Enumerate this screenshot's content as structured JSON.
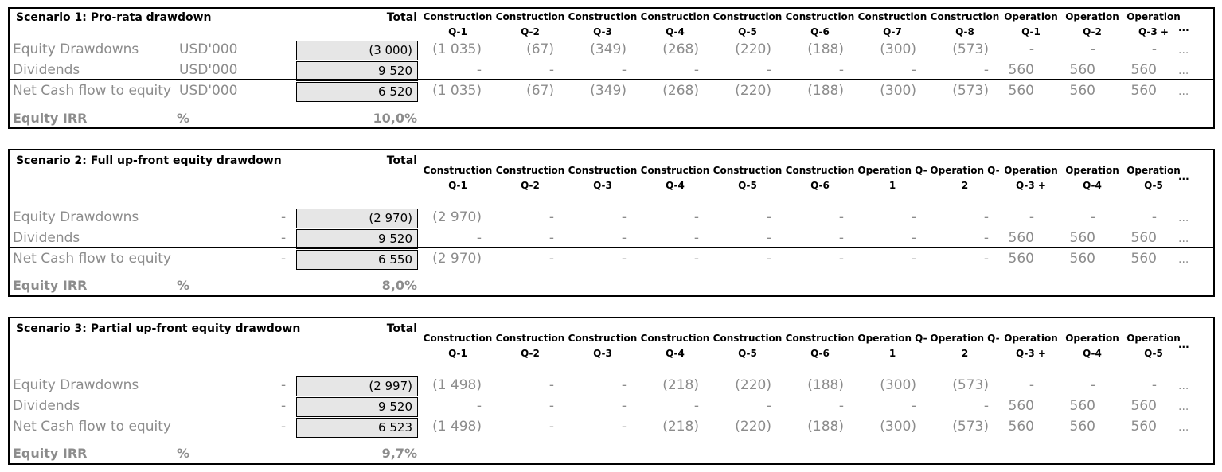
{
  "scenarios": [
    {
      "title": "Scenario 1: Pro-rata drawdown",
      "total_label": "Total",
      "columns": [
        [
          "Construction",
          "Q-1"
        ],
        [
          "Construction",
          "Q-2"
        ],
        [
          "Construction",
          "Q-3"
        ],
        [
          "Construction",
          "Q-4"
        ],
        [
          "Construction",
          "Q-5"
        ],
        [
          "Construction",
          "Q-6"
        ],
        [
          "Construction",
          "Q-7"
        ],
        [
          "Construction",
          "Q-8"
        ],
        [
          "Operation",
          "Q-1"
        ],
        [
          "Operation",
          "Q-2"
        ],
        [
          "Operation",
          "Q-3 +"
        ]
      ],
      "ellipsis": "...",
      "rows": [
        {
          "label": "Equity  Drawdowns",
          "unit": "USD'000",
          "total": "(3 000)",
          "values": [
            "(1 035)",
            "(67)",
            "(349)",
            "(268)",
            "(220)",
            "(188)",
            "(300)",
            "(573)",
            "-",
            "-",
            "-"
          ],
          "tail": "..."
        },
        {
          "label": "Dividends",
          "unit": "USD'000",
          "total": "9 520",
          "values": [
            "-",
            "-",
            "-",
            "-",
            "-",
            "-",
            "-",
            "-",
            "560",
            "560",
            "560"
          ],
          "tail": "..."
        },
        {
          "label": "Net Cash flow to equity",
          "unit": "USD'000",
          "total": "6 520",
          "values": [
            "(1 035)",
            "(67)",
            "(349)",
            "(268)",
            "(220)",
            "(188)",
            "(300)",
            "(573)",
            "560",
            "560",
            "560"
          ],
          "tail": "..."
        }
      ],
      "irr": {
        "label": "Equity IRR",
        "unit": "%",
        "value": "10,0%"
      }
    },
    {
      "title": "Scenario 2: Full up-front equity drawdown",
      "total_label": "Total",
      "columns": [
        [
          "Construction",
          "Q-1"
        ],
        [
          "Construction",
          "Q-2"
        ],
        [
          "Construction",
          "Q-3"
        ],
        [
          "Construction",
          "Q-4"
        ],
        [
          "Construction",
          "Q-5"
        ],
        [
          "Construction",
          "Q-6"
        ],
        [
          "Operation Q-",
          "1"
        ],
        [
          "Operation Q-",
          "2"
        ],
        [
          "Operation",
          "Q-3 +"
        ],
        [
          "Operation",
          "Q-4"
        ],
        [
          "Operation",
          "Q-5"
        ]
      ],
      "ellipsis": "...",
      "rows": [
        {
          "label": "Equity  Drawdowns",
          "unit": "-",
          "total": "(2 970)",
          "values": [
            "(2 970)",
            "-",
            "-",
            "-",
            "-",
            "-",
            "-",
            "-",
            "-",
            "-",
            "-"
          ],
          "tail": "..."
        },
        {
          "label": "Dividends",
          "unit": "-",
          "total": "9 520",
          "values": [
            "-",
            "-",
            "-",
            "-",
            "-",
            "-",
            "-",
            "-",
            "560",
            "560",
            "560"
          ],
          "tail": "..."
        },
        {
          "label": "Net Cash flow to equity",
          "unit": "-",
          "total": "6 550",
          "values": [
            "(2 970)",
            "-",
            "-",
            "-",
            "-",
            "-",
            "-",
            "-",
            "560",
            "560",
            "560"
          ],
          "tail": "..."
        }
      ],
      "irr": {
        "label": "Equity IRR",
        "unit": "%",
        "value": "8,0%"
      }
    },
    {
      "title": "Scenario 3: Partial up-front equity drawdown",
      "total_label": "Total",
      "columns": [
        [
          "Construction",
          "Q-1"
        ],
        [
          "Construction",
          "Q-2"
        ],
        [
          "Construction",
          "Q-3"
        ],
        [
          "Construction",
          "Q-4"
        ],
        [
          "Construction",
          "Q-5"
        ],
        [
          "Construction",
          "Q-6"
        ],
        [
          "Operation Q-",
          "1"
        ],
        [
          "Operation Q-",
          "2"
        ],
        [
          "Operation",
          "Q-3 +"
        ],
        [
          "Operation",
          "Q-4"
        ],
        [
          "Operation",
          "Q-5"
        ]
      ],
      "ellipsis": "...",
      "rows": [
        {
          "label": "Equity  Drawdowns",
          "unit": "-",
          "total": "(2 997)",
          "values": [
            "(1 498)",
            "-",
            "-",
            "(218)",
            "(220)",
            "(188)",
            "(300)",
            "(573)",
            "-",
            "-",
            "-"
          ],
          "tail": "..."
        },
        {
          "label": "Dividends",
          "unit": "-",
          "total": "9 520",
          "values": [
            "-",
            "-",
            "-",
            "-",
            "-",
            "-",
            "-",
            "-",
            "560",
            "560",
            "560"
          ],
          "tail": "..."
        },
        {
          "label": "Net Cash flow to equity",
          "unit": "-",
          "total": "6 523",
          "values": [
            "(1 498)",
            "-",
            "-",
            "(218)",
            "(220)",
            "(188)",
            "(300)",
            "(573)",
            "560",
            "560",
            "560"
          ],
          "tail": "..."
        }
      ],
      "irr": {
        "label": "Equity IRR",
        "unit": "%",
        "value": "9,7%"
      }
    }
  ]
}
